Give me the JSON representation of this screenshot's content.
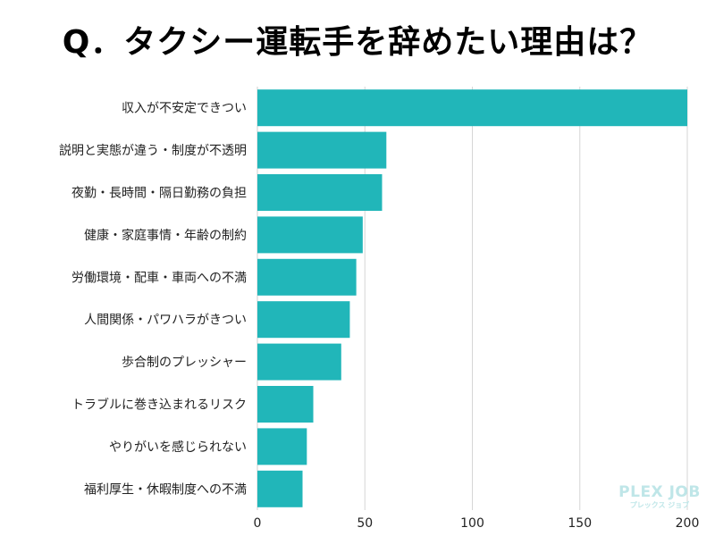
{
  "chart_data": {
    "type": "bar",
    "orientation": "horizontal",
    "title": "Q．タクシー運転手を辞めたい理由は？",
    "categories": [
      "収入が不安定できつい",
      "説明と実態が違う・制度が不透明",
      "夜勤・長時間・隔日勤務の負担",
      "健康・家庭事情・年齢の制約",
      "労働環境・配車・車両への不満",
      "人間関係・パワハラがきつい",
      "歩合制のプレッシャー",
      "トラブルに巻き込まれるリスク",
      "やりがいを感じられない",
      "福利厚生・休暇制度への不満"
    ],
    "values": [
      200,
      60,
      58,
      49,
      46,
      43,
      39,
      26,
      23,
      21
    ],
    "xlim": [
      0,
      200
    ],
    "xticks": [
      0,
      50,
      100,
      150,
      200
    ],
    "xlabel": "",
    "ylabel": "",
    "grid": "vertical",
    "legend": "none",
    "bar_color": "#21b6b9",
    "grid_color": "#d6d6d6"
  },
  "watermark": {
    "main": "PLEX JOB",
    "sub": "プレックス ジョブ"
  }
}
